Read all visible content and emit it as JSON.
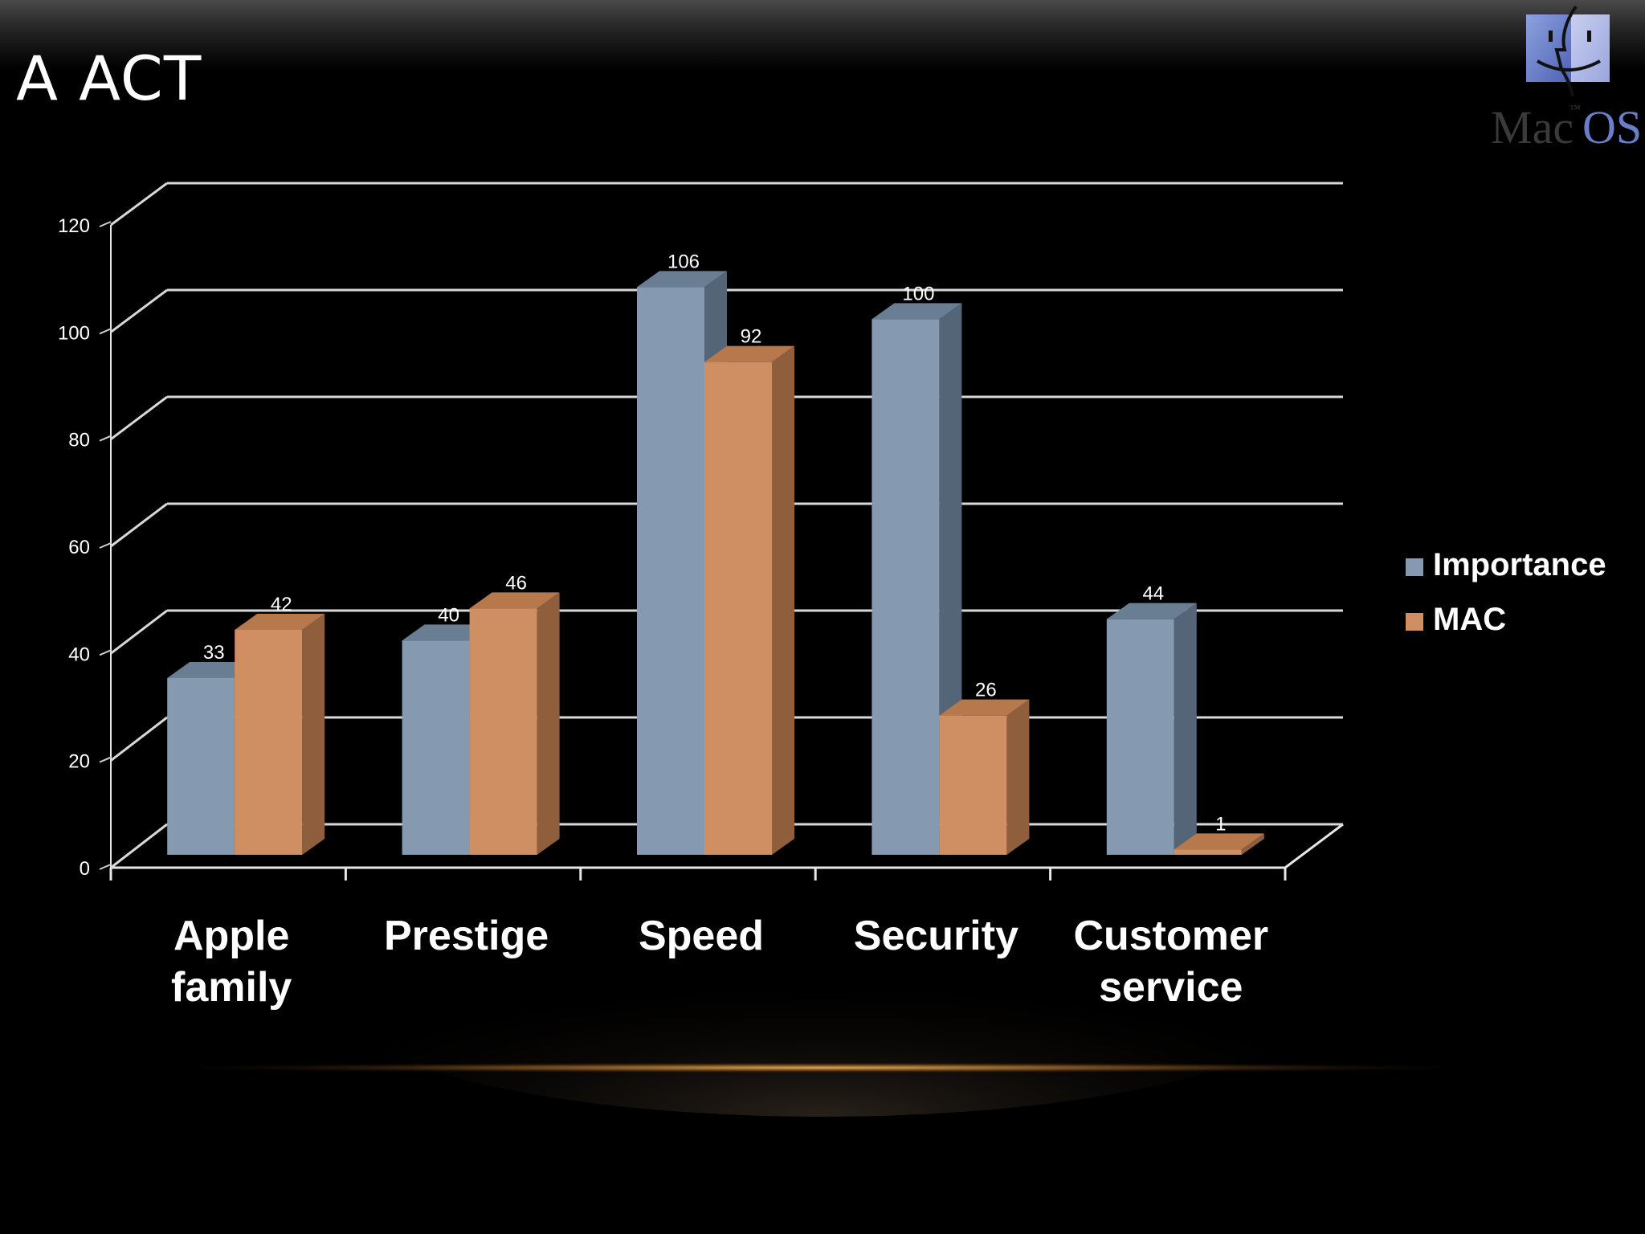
{
  "slide": {
    "title": "A ACT"
  },
  "logo": {
    "icon": "mac-os-finder-logo",
    "text_mac": "Mac",
    "text_os": "OS",
    "tm": "™"
  },
  "chart_data": {
    "type": "bar",
    "style": "3d-clustered-column",
    "categories": [
      "Apple family",
      "Prestige",
      "Speed",
      "Security",
      "Customer service"
    ],
    "category_lines": [
      [
        "Apple",
        "family"
      ],
      [
        "Prestige"
      ],
      [
        "Speed"
      ],
      [
        "Security"
      ],
      [
        "Customer",
        "service"
      ]
    ],
    "series": [
      {
        "name": "Importance",
        "values": [
          33,
          40,
          106,
          100,
          44
        ],
        "color": "#8599b0",
        "side_color": "#546577",
        "top_color": "#6a7e93"
      },
      {
        "name": "MAC",
        "values": [
          42,
          46,
          92,
          26,
          1
        ],
        "color": "#d08f62",
        "side_color": "#8f5f3d",
        "top_color": "#b7784c"
      }
    ],
    "y_ticks": [
      "0",
      "20",
      "40",
      "60",
      "80",
      "100",
      "120"
    ],
    "ylim": [
      0,
      120
    ],
    "grid": true,
    "legend_position": "right",
    "data_labels": true,
    "title": "",
    "xlabel": "",
    "ylabel": ""
  }
}
